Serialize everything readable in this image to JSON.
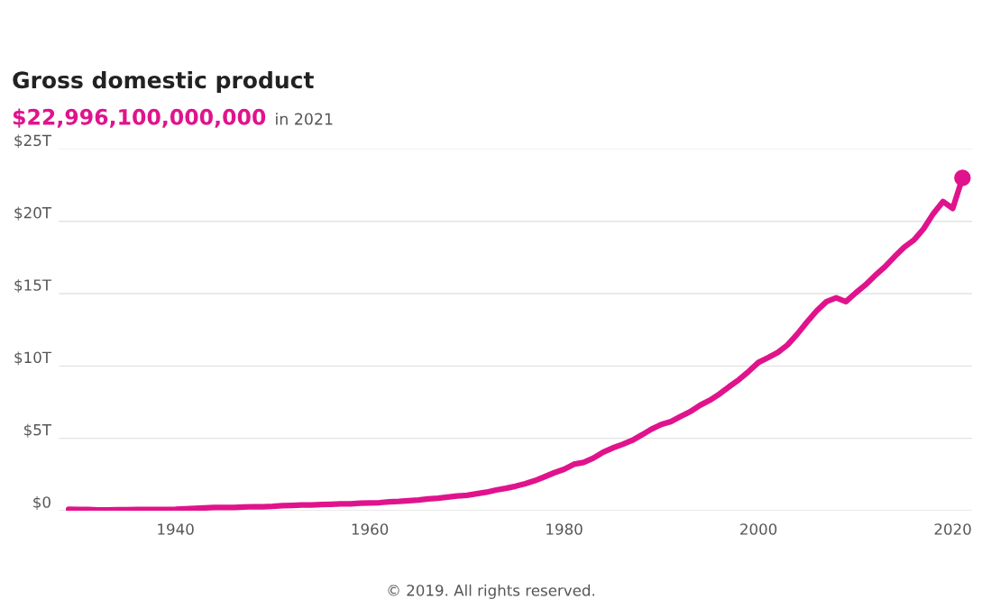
{
  "chart_data": {
    "type": "line",
    "title": "Gross domestic product",
    "subtitle": "$22,996,100,000,000 in 2021",
    "annotations": [
      "© 2019. All rights reserved."
    ],
    "x": [
      1929,
      1930,
      1931,
      1932,
      1933,
      1934,
      1935,
      1936,
      1937,
      1938,
      1939,
      1940,
      1941,
      1942,
      1943,
      1944,
      1945,
      1946,
      1947,
      1948,
      1949,
      1950,
      1951,
      1952,
      1953,
      1954,
      1955,
      1956,
      1957,
      1958,
      1959,
      1960,
      1961,
      1962,
      1963,
      1964,
      1965,
      1966,
      1967,
      1968,
      1969,
      1970,
      1971,
      1972,
      1973,
      1974,
      1975,
      1976,
      1977,
      1978,
      1979,
      1980,
      1981,
      1982,
      1983,
      1984,
      1985,
      1986,
      1987,
      1988,
      1989,
      1990,
      1991,
      1992,
      1993,
      1994,
      1995,
      1996,
      1997,
      1998,
      1999,
      2000,
      2001,
      2002,
      2003,
      2004,
      2005,
      2006,
      2007,
      2008,
      2009,
      2010,
      2011,
      2012,
      2013,
      2014,
      2015,
      2016,
      2017,
      2018,
      2019,
      2020,
      2021
    ],
    "series": [
      {
        "color": "#e0138c",
        "marker": "none",
        "values": [
          0.1,
          0.09,
          0.08,
          0.06,
          0.06,
          0.07,
          0.07,
          0.09,
          0.09,
          0.09,
          0.09,
          0.1,
          0.13,
          0.17,
          0.2,
          0.23,
          0.23,
          0.23,
          0.25,
          0.28,
          0.28,
          0.3,
          0.35,
          0.37,
          0.39,
          0.39,
          0.43,
          0.45,
          0.47,
          0.48,
          0.52,
          0.54,
          0.56,
          0.61,
          0.64,
          0.69,
          0.74,
          0.82,
          0.86,
          0.94,
          1.02,
          1.07,
          1.17,
          1.28,
          1.43,
          1.55,
          1.69,
          1.87,
          2.08,
          2.35,
          2.63,
          2.86,
          3.21,
          3.34,
          3.63,
          4.04,
          4.34,
          4.58,
          4.86,
          5.24,
          5.64,
          5.96,
          6.16,
          6.52,
          6.86,
          7.29,
          7.64,
          8.07,
          8.58,
          9.06,
          9.63,
          10.25,
          10.58,
          10.94,
          11.46,
          12.21,
          13.04,
          13.82,
          14.45,
          14.71,
          14.45,
          15.05,
          15.6,
          16.25,
          16.84,
          17.55,
          18.21,
          18.7,
          19.48,
          20.53,
          21.37,
          20.89,
          23.0
        ]
      },
      {
        "type": "scatter",
        "marker": "circle",
        "color": "#e0138c",
        "x": [
          2021
        ],
        "values": [
          23.0
        ]
      }
    ],
    "xlim": [
      1928,
      2022
    ],
    "xticks": [
      1940,
      1960,
      1980,
      2000,
      2020
    ],
    "ylim": [
      0,
      25
    ],
    "yticks": [
      {
        "value": 0,
        "label": "$0"
      },
      {
        "value": 5,
        "label": "$5T"
      },
      {
        "value": 10,
        "label": "$10T"
      },
      {
        "value": 15,
        "label": "$15T"
      },
      {
        "value": 20,
        "label": "$20T"
      },
      {
        "value": 25,
        "label": "$25T"
      }
    ],
    "grid": "y",
    "line_style": "solid",
    "legend": false
  }
}
